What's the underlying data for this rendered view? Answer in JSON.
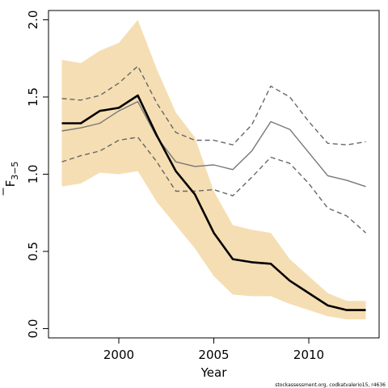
{
  "chart_data": {
    "type": "line",
    "xlabel": "Year",
    "ylabel": "F",
    "ylabel_subscript": "3−5",
    "credit": "stockassessment.org, codkatvalerio15, r4636",
    "xlim": [
      1996.3,
      2013.7
    ],
    "ylim": [
      -0.06,
      2.06
    ],
    "xticks": [
      2000,
      2005,
      2010
    ],
    "yticks": [
      0.0,
      0.5,
      1.0,
      1.5,
      2.0
    ],
    "ytick_labels": [
      "0.0",
      "0.5",
      "1.0",
      "1.5",
      "2.0"
    ],
    "years": [
      1997,
      1998,
      1999,
      2000,
      2001,
      2002,
      2003,
      2004,
      2005,
      2006,
      2007,
      2008,
      2009,
      2010,
      2011,
      2012,
      2013
    ],
    "series": [
      {
        "role": "band",
        "lower": [
          0.92,
          0.94,
          1.01,
          1.0,
          1.02,
          0.82,
          0.67,
          0.52,
          0.34,
          0.22,
          0.21,
          0.21,
          0.16,
          0.12,
          0.08,
          0.06,
          0.06
        ],
        "upper": [
          1.74,
          1.72,
          1.8,
          1.85,
          2.0,
          1.68,
          1.4,
          1.24,
          0.89,
          0.67,
          0.64,
          0.62,
          0.45,
          0.34,
          0.23,
          0.18,
          0.18
        ],
        "color": "#f5deb3"
      },
      {
        "role": "estimate",
        "values": [
          1.33,
          1.33,
          1.41,
          1.43,
          1.51,
          1.25,
          1.02,
          0.87,
          0.62,
          0.45,
          0.43,
          0.42,
          0.31,
          0.23,
          0.15,
          0.12,
          0.12
        ],
        "color": "#000000",
        "style": "solid"
      },
      {
        "role": "comparison",
        "values": [
          1.28,
          1.3,
          1.33,
          1.41,
          1.47,
          1.24,
          1.08,
          1.05,
          1.06,
          1.03,
          1.15,
          1.34,
          1.29,
          1.14,
          0.99,
          0.96,
          0.92
        ],
        "color": "#777777",
        "style": "solid"
      },
      {
        "role": "comparison-upper",
        "values": [
          1.49,
          1.48,
          1.51,
          1.59,
          1.7,
          1.46,
          1.27,
          1.22,
          1.22,
          1.19,
          1.32,
          1.57,
          1.5,
          1.34,
          1.2,
          1.19,
          1.21
        ],
        "color": "#666666",
        "style": "dashed"
      },
      {
        "role": "comparison-lower",
        "values": [
          1.08,
          1.12,
          1.15,
          1.22,
          1.24,
          1.08,
          0.89,
          0.89,
          0.9,
          0.86,
          0.98,
          1.11,
          1.07,
          0.94,
          0.78,
          0.73,
          0.62
        ],
        "color": "#666666",
        "style": "dashed"
      }
    ],
    "grid": false,
    "legend": "none"
  }
}
